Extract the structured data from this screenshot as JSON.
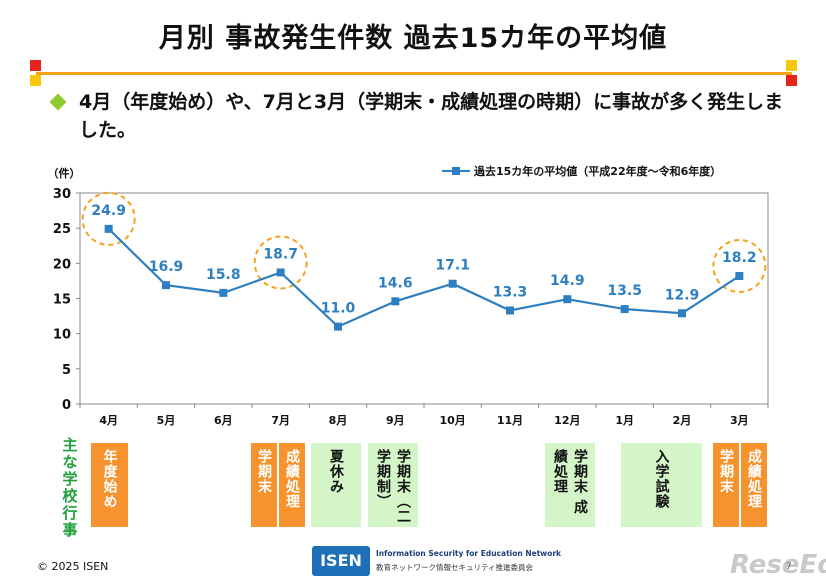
{
  "title": "月別 事故発生件数 過去15カ年の平均値",
  "subtitle": "4月（年度始め）や、7月と3月（学期末・成績処理の時期）に事故が多く発生しました。",
  "colors": {
    "accent": "#f4a21a",
    "line": "#2d7fc1",
    "highlight_circle": "#f4a21a",
    "event_orange": "#f7932e",
    "event_green": "#d4f5c8",
    "event_label": "#1ea03a"
  },
  "chart_data": {
    "type": "line",
    "categories": [
      "4月",
      "5月",
      "6月",
      "7月",
      "8月",
      "9月",
      "10月",
      "11月",
      "12月",
      "1月",
      "2月",
      "3月"
    ],
    "series": [
      {
        "name": "過去15カ年の平均値（平成22年度～令和6年度）",
        "values": [
          24.9,
          16.9,
          15.8,
          18.7,
          11.0,
          14.6,
          17.1,
          13.3,
          14.9,
          13.5,
          12.9,
          18.2
        ]
      }
    ],
    "data_labels": [
      "24.9",
      "16.9",
      "15.8",
      "18.7",
      "11.0",
      "14.6",
      "17.1",
      "13.3",
      "14.9",
      "13.5",
      "12.9",
      "18.2"
    ],
    "highlighted": [
      "4月",
      "7月",
      "3月"
    ],
    "ylabel": "（件）",
    "ylim": [
      0,
      30
    ],
    "yticks": [
      "0",
      "5",
      "10",
      "15",
      "20",
      "25",
      "30"
    ],
    "grid": false,
    "legend": "top-right"
  },
  "events": {
    "label": "主な学校行事",
    "items": [
      {
        "text": "年度始め",
        "style": "orange"
      },
      {
        "text": "学期末",
        "style": "orange"
      },
      {
        "text": "成績処理",
        "style": "orange"
      },
      {
        "text": "夏休み",
        "style": "green"
      },
      {
        "text": "学期末（二学期制）",
        "style": "green"
      },
      {
        "text": "学期末 成績処理",
        "style": "green"
      },
      {
        "text": "入学試験",
        "style": "green"
      },
      {
        "text": "学期末",
        "style": "orange"
      },
      {
        "text": "成績処理",
        "style": "orange"
      }
    ]
  },
  "footer": {
    "copyright": "© 2025 ISEN",
    "logo_mark": "ISEN",
    "logo_text": "Information Security for Education Network",
    "logo_subtext": "教育ネットワーク情報セキュリティ推進委員会",
    "watermark": "ReseEd",
    "page": "7"
  }
}
